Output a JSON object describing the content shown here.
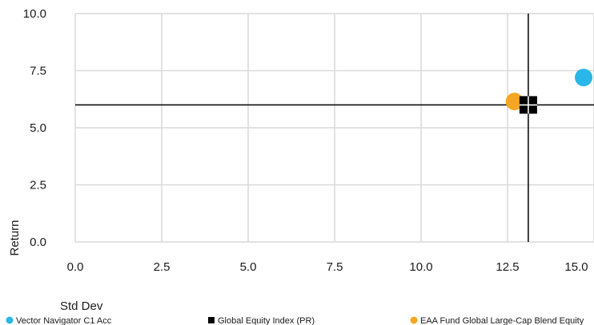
{
  "chart_data": {
    "type": "scatter",
    "xlabel": "Std Dev",
    "ylabel": "Return",
    "xlim": [
      0,
      15
    ],
    "ylim": [
      0,
      10
    ],
    "xticks": [
      "0.0",
      "2.5",
      "5.0",
      "7.5",
      "10.0",
      "12.5",
      "15.0"
    ],
    "yticks": [
      "0.0",
      "2.5",
      "5.0",
      "7.5",
      "10.0"
    ],
    "grid": true,
    "legend_position": "bottom",
    "series": [
      {
        "name": "Vector Navigator C1 Acc",
        "x": 14.7,
        "y": 7.2,
        "marker": "circle",
        "color": "#29b6e8"
      },
      {
        "name": "Global Equity Index (PR)",
        "x": 13.1,
        "y": 6.0,
        "marker": "square",
        "color": "#000000"
      },
      {
        "name": "EAA Fund Global Large-Cap Blend Equity",
        "x": 12.7,
        "y": 6.15,
        "marker": "circle",
        "color": "#f5a623"
      }
    ],
    "reference_lines": {
      "x": 13.1,
      "y": 6.0
    }
  }
}
